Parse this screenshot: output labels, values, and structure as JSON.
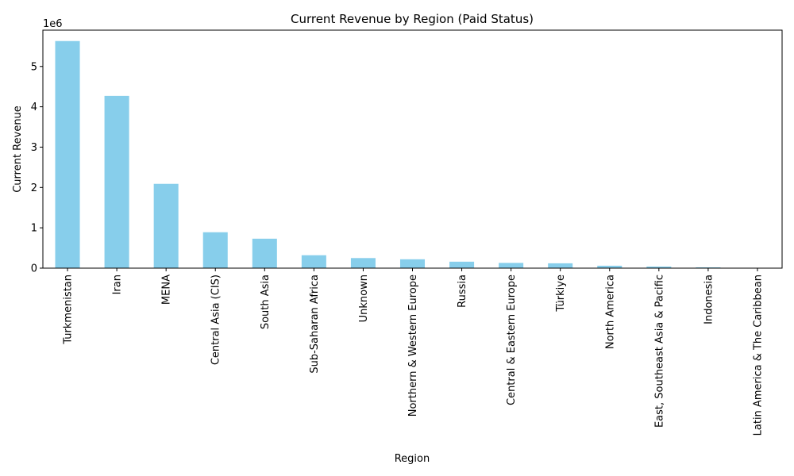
{
  "chart_data": {
    "type": "bar",
    "title": "Current Revenue by Region (Paid Status)",
    "xlabel": "Region",
    "ylabel": "Current Revenue",
    "y_scale_label": "1e6",
    "ylim": [
      0,
      5.9
    ],
    "y_ticks": [
      "0",
      "1",
      "2",
      "3",
      "4",
      "5"
    ],
    "grid": false,
    "bar_color": "#87ceeb",
    "categories": [
      "Turkmenistan",
      "Iran",
      "MENA",
      "Central Asia (CIS)",
      "South Asia",
      "Sub-Saharan Africa",
      "Unknown",
      "Northern & Western Europe",
      "Russia",
      "Central & Eastern Europe",
      "Türkiye",
      "North America",
      "East, Southeast Asia & Pacific",
      "Indonesia",
      "Latin America & The Caribbean"
    ],
    "values": [
      5.63,
      4.27,
      2.09,
      0.89,
      0.73,
      0.32,
      0.25,
      0.22,
      0.16,
      0.13,
      0.12,
      0.06,
      0.04,
      0.02,
      0.003
    ]
  }
}
